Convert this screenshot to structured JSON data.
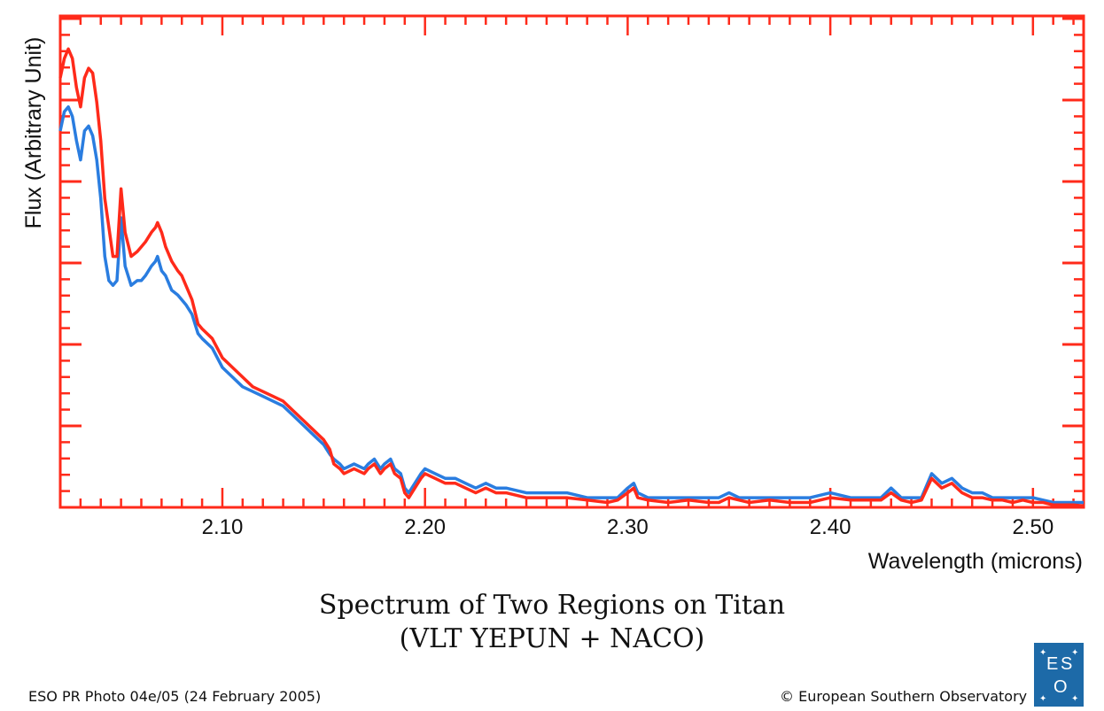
{
  "chart_data": {
    "type": "line",
    "title": "Spectrum of Two Regions on Titan",
    "subtitle": "(VLT YEPUN + NACO)",
    "xlabel": "Wavelength (microns)",
    "ylabel": "Flux (Arbitrary Unit)",
    "xlim": [
      2.02,
      2.525
    ],
    "ylim": [
      0,
      100
    ],
    "xticks": [
      "2.10",
      "2.20",
      "2.30",
      "2.40",
      "2.50"
    ],
    "xtick_values": [
      2.1,
      2.2,
      2.3,
      2.4,
      2.5
    ],
    "series": [
      {
        "color": "#ff2a1a",
        "x": [
          2.02,
          2.022,
          2.024,
          2.026,
          2.028,
          2.03,
          2.032,
          2.034,
          2.036,
          2.038,
          2.04,
          2.042,
          2.044,
          2.046,
          2.048,
          2.05,
          2.052,
          2.055,
          2.058,
          2.06,
          2.062,
          2.065,
          2.067,
          2.068,
          2.07,
          2.072,
          2.075,
          2.078,
          2.08,
          2.082,
          2.085,
          2.088,
          2.09,
          2.095,
          2.1,
          2.105,
          2.11,
          2.115,
          2.12,
          2.125,
          2.13,
          2.135,
          2.14,
          2.145,
          2.15,
          2.153,
          2.155,
          2.158,
          2.16,
          2.165,
          2.17,
          2.172,
          2.175,
          2.178,
          2.18,
          2.183,
          2.185,
          2.188,
          2.19,
          2.192,
          2.195,
          2.198,
          2.2,
          2.205,
          2.21,
          2.215,
          2.22,
          2.225,
          2.23,
          2.235,
          2.24,
          2.25,
          2.26,
          2.27,
          2.28,
          2.29,
          2.295,
          2.3,
          2.303,
          2.305,
          2.31,
          2.32,
          2.33,
          2.34,
          2.345,
          2.35,
          2.355,
          2.36,
          2.37,
          2.38,
          2.39,
          2.4,
          2.41,
          2.42,
          2.425,
          2.43,
          2.435,
          2.44,
          2.445,
          2.45,
          2.455,
          2.46,
          2.465,
          2.47,
          2.475,
          2.48,
          2.485,
          2.49,
          2.495,
          2.5,
          2.505,
          2.51,
          2.515,
          2.52,
          2.525
        ],
        "y": [
          89,
          93,
          95,
          93,
          87,
          83,
          89,
          91,
          90,
          84,
          76,
          64,
          58,
          52,
          52,
          66,
          57,
          52,
          53,
          54,
          55,
          57,
          58,
          59,
          57,
          54,
          51,
          49,
          48,
          46,
          43,
          38,
          37,
          35,
          31,
          29,
          27,
          25,
          24,
          23,
          22,
          20,
          18,
          16,
          14,
          12,
          9,
          8,
          7,
          8,
          7,
          8,
          9,
          7,
          8,
          9,
          7,
          6,
          3,
          2,
          4,
          6,
          7,
          6,
          5,
          5,
          4,
          3,
          4,
          3,
          3,
          2,
          2,
          2,
          1.5,
          1,
          1.5,
          3,
          4,
          2,
          1.5,
          1,
          1.5,
          1,
          1,
          2,
          1.5,
          1,
          1.5,
          1,
          1,
          2,
          1.5,
          1.5,
          1.5,
          3,
          1.5,
          1,
          1.5,
          6,
          4,
          5,
          3,
          2,
          2,
          1.5,
          1.5,
          1,
          1.5,
          1,
          1,
          0.5,
          0.5,
          0.5,
          0.3
        ]
      },
      {
        "color": "#2a7de0",
        "x": [
          2.02,
          2.022,
          2.024,
          2.026,
          2.028,
          2.03,
          2.032,
          2.034,
          2.036,
          2.038,
          2.04,
          2.042,
          2.044,
          2.046,
          2.048,
          2.05,
          2.052,
          2.055,
          2.058,
          2.06,
          2.062,
          2.065,
          2.067,
          2.068,
          2.07,
          2.072,
          2.075,
          2.078,
          2.08,
          2.082,
          2.085,
          2.088,
          2.09,
          2.095,
          2.1,
          2.105,
          2.11,
          2.115,
          2.12,
          2.125,
          2.13,
          2.135,
          2.14,
          2.145,
          2.15,
          2.153,
          2.155,
          2.158,
          2.16,
          2.165,
          2.17,
          2.172,
          2.175,
          2.178,
          2.18,
          2.183,
          2.185,
          2.188,
          2.19,
          2.192,
          2.195,
          2.198,
          2.2,
          2.205,
          2.21,
          2.215,
          2.22,
          2.225,
          2.23,
          2.235,
          2.24,
          2.25,
          2.26,
          2.27,
          2.28,
          2.29,
          2.295,
          2.3,
          2.303,
          2.305,
          2.31,
          2.32,
          2.33,
          2.34,
          2.345,
          2.35,
          2.355,
          2.36,
          2.37,
          2.38,
          2.39,
          2.4,
          2.41,
          2.42,
          2.425,
          2.43,
          2.435,
          2.44,
          2.445,
          2.45,
          2.455,
          2.46,
          2.465,
          2.47,
          2.475,
          2.48,
          2.485,
          2.49,
          2.495,
          2.5,
          2.505,
          2.51,
          2.515,
          2.52,
          2.525
        ],
        "y": [
          78,
          82,
          83,
          81,
          76,
          72,
          78,
          79,
          77,
          72,
          64,
          52,
          47,
          46,
          47,
          60,
          50,
          46,
          47,
          47,
          48,
          50,
          51,
          52,
          49,
          48,
          45,
          44,
          43,
          42,
          40,
          36,
          35,
          33,
          29,
          27,
          25,
          24,
          23,
          22,
          21,
          19,
          17,
          15,
          13,
          11,
          10,
          9,
          8,
          9,
          8,
          9,
          10,
          8,
          9,
          10,
          8,
          7,
          4,
          3,
          5,
          7,
          8,
          7,
          6,
          6,
          5,
          4,
          5,
          4,
          4,
          3,
          3,
          3,
          2,
          2,
          2,
          4,
          5,
          3,
          2,
          2,
          2,
          2,
          2,
          3,
          2,
          2,
          2,
          2,
          2,
          3,
          2,
          2,
          2,
          4,
          2,
          2,
          2,
          7,
          5,
          6,
          4,
          3,
          3,
          2,
          2,
          2,
          2,
          2,
          1.5,
          1,
          1,
          1,
          1
        ]
      }
    ]
  },
  "footer": {
    "left": "ESO PR Photo 04e/05 (24 February 2005)",
    "right": "© European Southern Observatory"
  },
  "logo": {
    "text_e": "E",
    "text_s": "S",
    "text_o": "O"
  }
}
